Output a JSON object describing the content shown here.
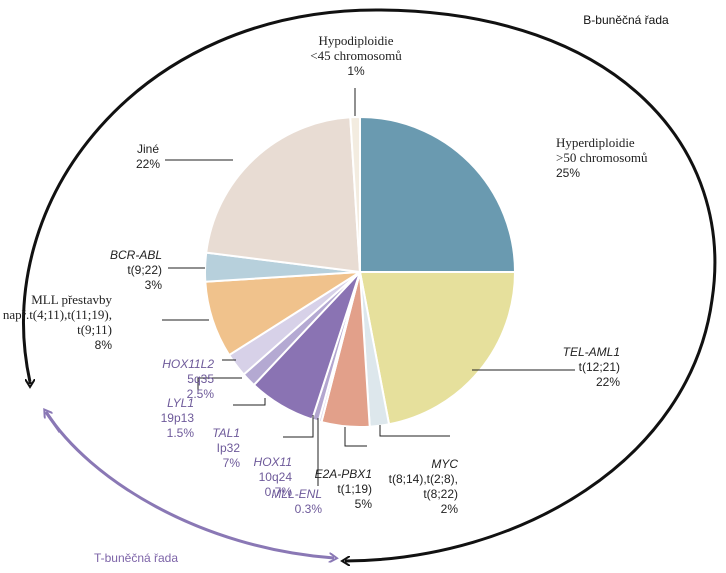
{
  "title_b": "B-buněčná řada",
  "title_t": "T-buněčná řada",
  "chart_data": {
    "type": "pie",
    "start_angle_deg": 0,
    "direction": "clockwise",
    "slices": [
      {
        "id": "hyperdiploidie",
        "lines": [
          "Hyperdiploidie",
          ">50 chromosomů"
        ],
        "pct_label": "25%",
        "value": 25,
        "color": "#6a9ab0",
        "lineage": "B"
      },
      {
        "id": "tel-aml1",
        "lines": [
          "TEL-AML1",
          "t(12;21)"
        ],
        "pct_label": "22%",
        "value": 22,
        "color": "#e6e09c",
        "lineage": "B"
      },
      {
        "id": "myc",
        "lines": [
          "MYC",
          "t(8;14),t(2;8),",
          "t(8;22)"
        ],
        "pct_label": "2%",
        "value": 2,
        "color": "#dde7ec",
        "lineage": "B"
      },
      {
        "id": "e2a-pbx1",
        "lines": [
          "E2A-PBX1",
          "t(1;19)"
        ],
        "pct_label": "5%",
        "value": 5,
        "color": "#e2a08a",
        "lineage": "B"
      },
      {
        "id": "mll-enl",
        "lines": [
          "MLL-ENL"
        ],
        "pct_label": "0.3%",
        "value": 0.3,
        "color": "#dcd5ea",
        "lineage": "T"
      },
      {
        "id": "hox11",
        "lines": [
          "HOX11",
          "10q24"
        ],
        "pct_label": "0.7%",
        "value": 0.7,
        "color": "#b3a6cf",
        "lineage": "T"
      },
      {
        "id": "tal1",
        "lines": [
          "TAL1",
          "Ip32"
        ],
        "pct_label": "7%",
        "value": 7,
        "color": "#8a73b3",
        "lineage": "T"
      },
      {
        "id": "lyl1",
        "lines": [
          "LYL1",
          "19p13"
        ],
        "pct_label": "1.5%",
        "value": 1.5,
        "color": "#b4a9d2",
        "lineage": "T"
      },
      {
        "id": "hox11l2",
        "lines": [
          "HOX11L2",
          "5q35"
        ],
        "pct_label": "2.5%",
        "value": 2.5,
        "color": "#d7d1e8",
        "lineage": "T"
      },
      {
        "id": "mll",
        "lines": [
          "MLL přestavby",
          "např.t(4;11),t(11;19),",
          "t(9;11)"
        ],
        "pct_label": "8%",
        "value": 8,
        "color": "#f0c28c",
        "lineage": "B"
      },
      {
        "id": "bcr-abl",
        "lines": [
          "BCR-ABL",
          "t(9;22)"
        ],
        "pct_label": "3%",
        "value": 3,
        "color": "#b7d0dc",
        "lineage": "B"
      },
      {
        "id": "jine",
        "lines": [
          "Jiné"
        ],
        "pct_label": "22%",
        "value": 22,
        "color": "#e8dcd3",
        "lineage": "B"
      },
      {
        "id": "hypodiploidie",
        "lines": [
          "Hypodiploidie",
          "<45 chromosomů"
        ],
        "pct_label": "1%",
        "value": 1,
        "color": "#f3ece0",
        "lineage": "B"
      }
    ]
  }
}
